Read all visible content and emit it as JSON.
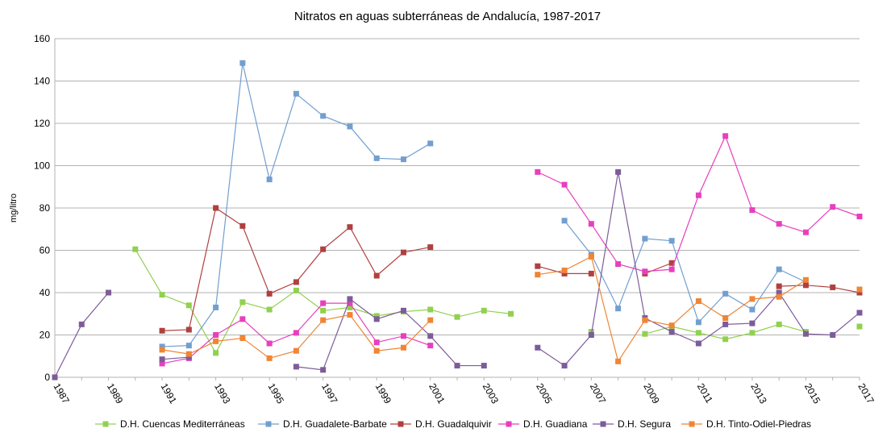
{
  "chart_data": {
    "type": "line",
    "title": "Nitratos en aguas subterráneas de Andalucía, 1987-2017",
    "xlabel": "",
    "ylabel": "mg/litro",
    "xlim": [
      1987,
      2017
    ],
    "ylim": [
      0,
      160
    ],
    "y_ticks": [
      0,
      20,
      40,
      60,
      80,
      100,
      120,
      140,
      160
    ],
    "x_ticks": [
      "1987",
      "1989",
      "1991",
      "1993",
      "1995",
      "1997",
      "1999",
      "2001",
      "2003",
      "2005",
      "2007",
      "2009",
      "2011",
      "2013",
      "2015",
      "2017"
    ],
    "grid": "horizontal",
    "legend_position": "bottom",
    "x": [
      1987,
      1988,
      1989,
      1990,
      1991,
      1992,
      1993,
      1994,
      1995,
      1996,
      1997,
      1998,
      1999,
      2000,
      2001,
      2002,
      2003,
      2004,
      2005,
      2006,
      2007,
      2008,
      2009,
      2010,
      2011,
      2012,
      2013,
      2014,
      2015,
      2016,
      2017
    ],
    "series": [
      {
        "name": "D.H. Cuencas Mediterráneas",
        "color": "#92d050",
        "values": [
          null,
          null,
          null,
          60.5,
          39,
          34,
          11.5,
          35.5,
          32,
          41,
          31.5,
          33,
          29,
          31,
          32,
          28.5,
          31.5,
          30,
          null,
          null,
          21.5,
          null,
          20.5,
          24,
          21,
          18,
          21,
          25,
          21.5,
          null,
          24
        ]
      },
      {
        "name": "D.H. Guadalete-Barbate",
        "color": "#729fcf",
        "values": [
          null,
          null,
          null,
          null,
          14.5,
          15,
          33,
          148.5,
          93.5,
          134,
          123.5,
          118.5,
          103.5,
          103,
          110.5,
          null,
          null,
          null,
          null,
          74,
          58,
          32.5,
          65.5,
          64.5,
          26,
          39.5,
          32,
          51,
          45,
          null,
          null
        ]
      },
      {
        "name": "D.H. Guadalquivir",
        "color": "#b04040",
        "values": [
          null,
          null,
          null,
          null,
          22,
          22.5,
          80,
          71.5,
          39.5,
          45,
          60.5,
          71,
          48,
          59,
          61.5,
          null,
          null,
          null,
          52.5,
          49,
          49,
          null,
          49,
          54,
          null,
          null,
          null,
          43,
          43.5,
          42.5,
          40
        ]
      },
      {
        "name": "D.H. Guadiana",
        "color": "#e83fbe",
        "values": [
          null,
          null,
          null,
          null,
          6.5,
          9,
          20,
          27.5,
          16,
          21,
          35,
          35,
          16.5,
          19.5,
          15,
          null,
          null,
          null,
          97,
          91,
          72.5,
          53.5,
          50,
          51,
          86,
          114,
          79,
          72.5,
          68.5,
          80.5,
          76
        ]
      },
      {
        "name": "D.H. Segura",
        "color": "#7d5c9a",
        "values": [
          0,
          25,
          40,
          null,
          8.5,
          9.5,
          null,
          null,
          null,
          5,
          3.5,
          37,
          27.5,
          31.5,
          19.5,
          5.5,
          5.5,
          null,
          14,
          5.5,
          20,
          97,
          28,
          21.5,
          16,
          25,
          25.5,
          40,
          20.5,
          20,
          30.5
        ]
      },
      {
        "name": "D.H. Tinto-Odiel-Piedras",
        "color": "#ef8535",
        "values": [
          null,
          null,
          null,
          null,
          13,
          11,
          17,
          18.5,
          9,
          12.5,
          27,
          29.5,
          12.5,
          14,
          27,
          null,
          null,
          null,
          48.5,
          50.5,
          57,
          7.5,
          27,
          24.5,
          36,
          28,
          37,
          38,
          46,
          null,
          41.5
        ]
      }
    ]
  }
}
